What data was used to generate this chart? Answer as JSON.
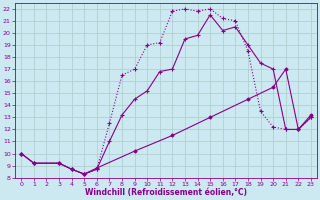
{
  "xlabel": "Windchill (Refroidissement éolien,°C)",
  "bg_color": "#cce8f0",
  "grid_color": "#aacccc",
  "line_color": "#880088",
  "xlim": [
    -0.5,
    23.5
  ],
  "ylim": [
    8,
    22.5
  ],
  "xticks": [
    0,
    1,
    2,
    3,
    4,
    5,
    6,
    7,
    8,
    9,
    10,
    11,
    12,
    13,
    14,
    15,
    16,
    17,
    18,
    19,
    20,
    21,
    22,
    23
  ],
  "yticks": [
    8,
    9,
    10,
    11,
    12,
    13,
    14,
    15,
    16,
    17,
    18,
    19,
    20,
    21,
    22
  ],
  "line1_x": [
    0,
    1,
    3,
    4,
    5,
    6,
    7,
    8,
    9,
    10,
    11,
    12,
    13,
    14,
    15,
    16,
    17,
    18,
    19,
    20,
    21,
    22,
    23
  ],
  "line1_y": [
    10,
    9.2,
    9.2,
    8.7,
    8.3,
    8.7,
    11.0,
    13.2,
    14.5,
    15.2,
    16.8,
    17.0,
    19.5,
    19.8,
    21.5,
    20.2,
    20.5,
    19.0,
    17.5,
    17.0,
    12.0,
    12.0,
    13.0
  ],
  "line2_x": [
    0,
    1,
    3,
    4,
    5,
    6,
    7,
    8,
    9,
    10,
    11,
    12,
    13,
    14,
    15,
    16,
    17,
    18,
    19,
    20,
    21,
    22,
    23
  ],
  "line2_y": [
    10,
    9.2,
    9.2,
    8.7,
    8.3,
    8.7,
    12.5,
    16.5,
    17.0,
    19.0,
    19.2,
    21.8,
    22.0,
    21.8,
    22.0,
    21.2,
    21.0,
    18.5,
    13.5,
    12.2,
    12.0,
    12.0,
    13.0
  ],
  "line3_x": [
    0,
    1,
    3,
    4,
    5,
    6,
    9,
    12,
    15,
    18,
    20,
    21,
    22,
    23
  ],
  "line3_y": [
    10,
    9.2,
    9.2,
    8.7,
    8.3,
    8.8,
    10.2,
    11.5,
    13.0,
    14.5,
    15.5,
    17.0,
    12.0,
    13.2
  ]
}
